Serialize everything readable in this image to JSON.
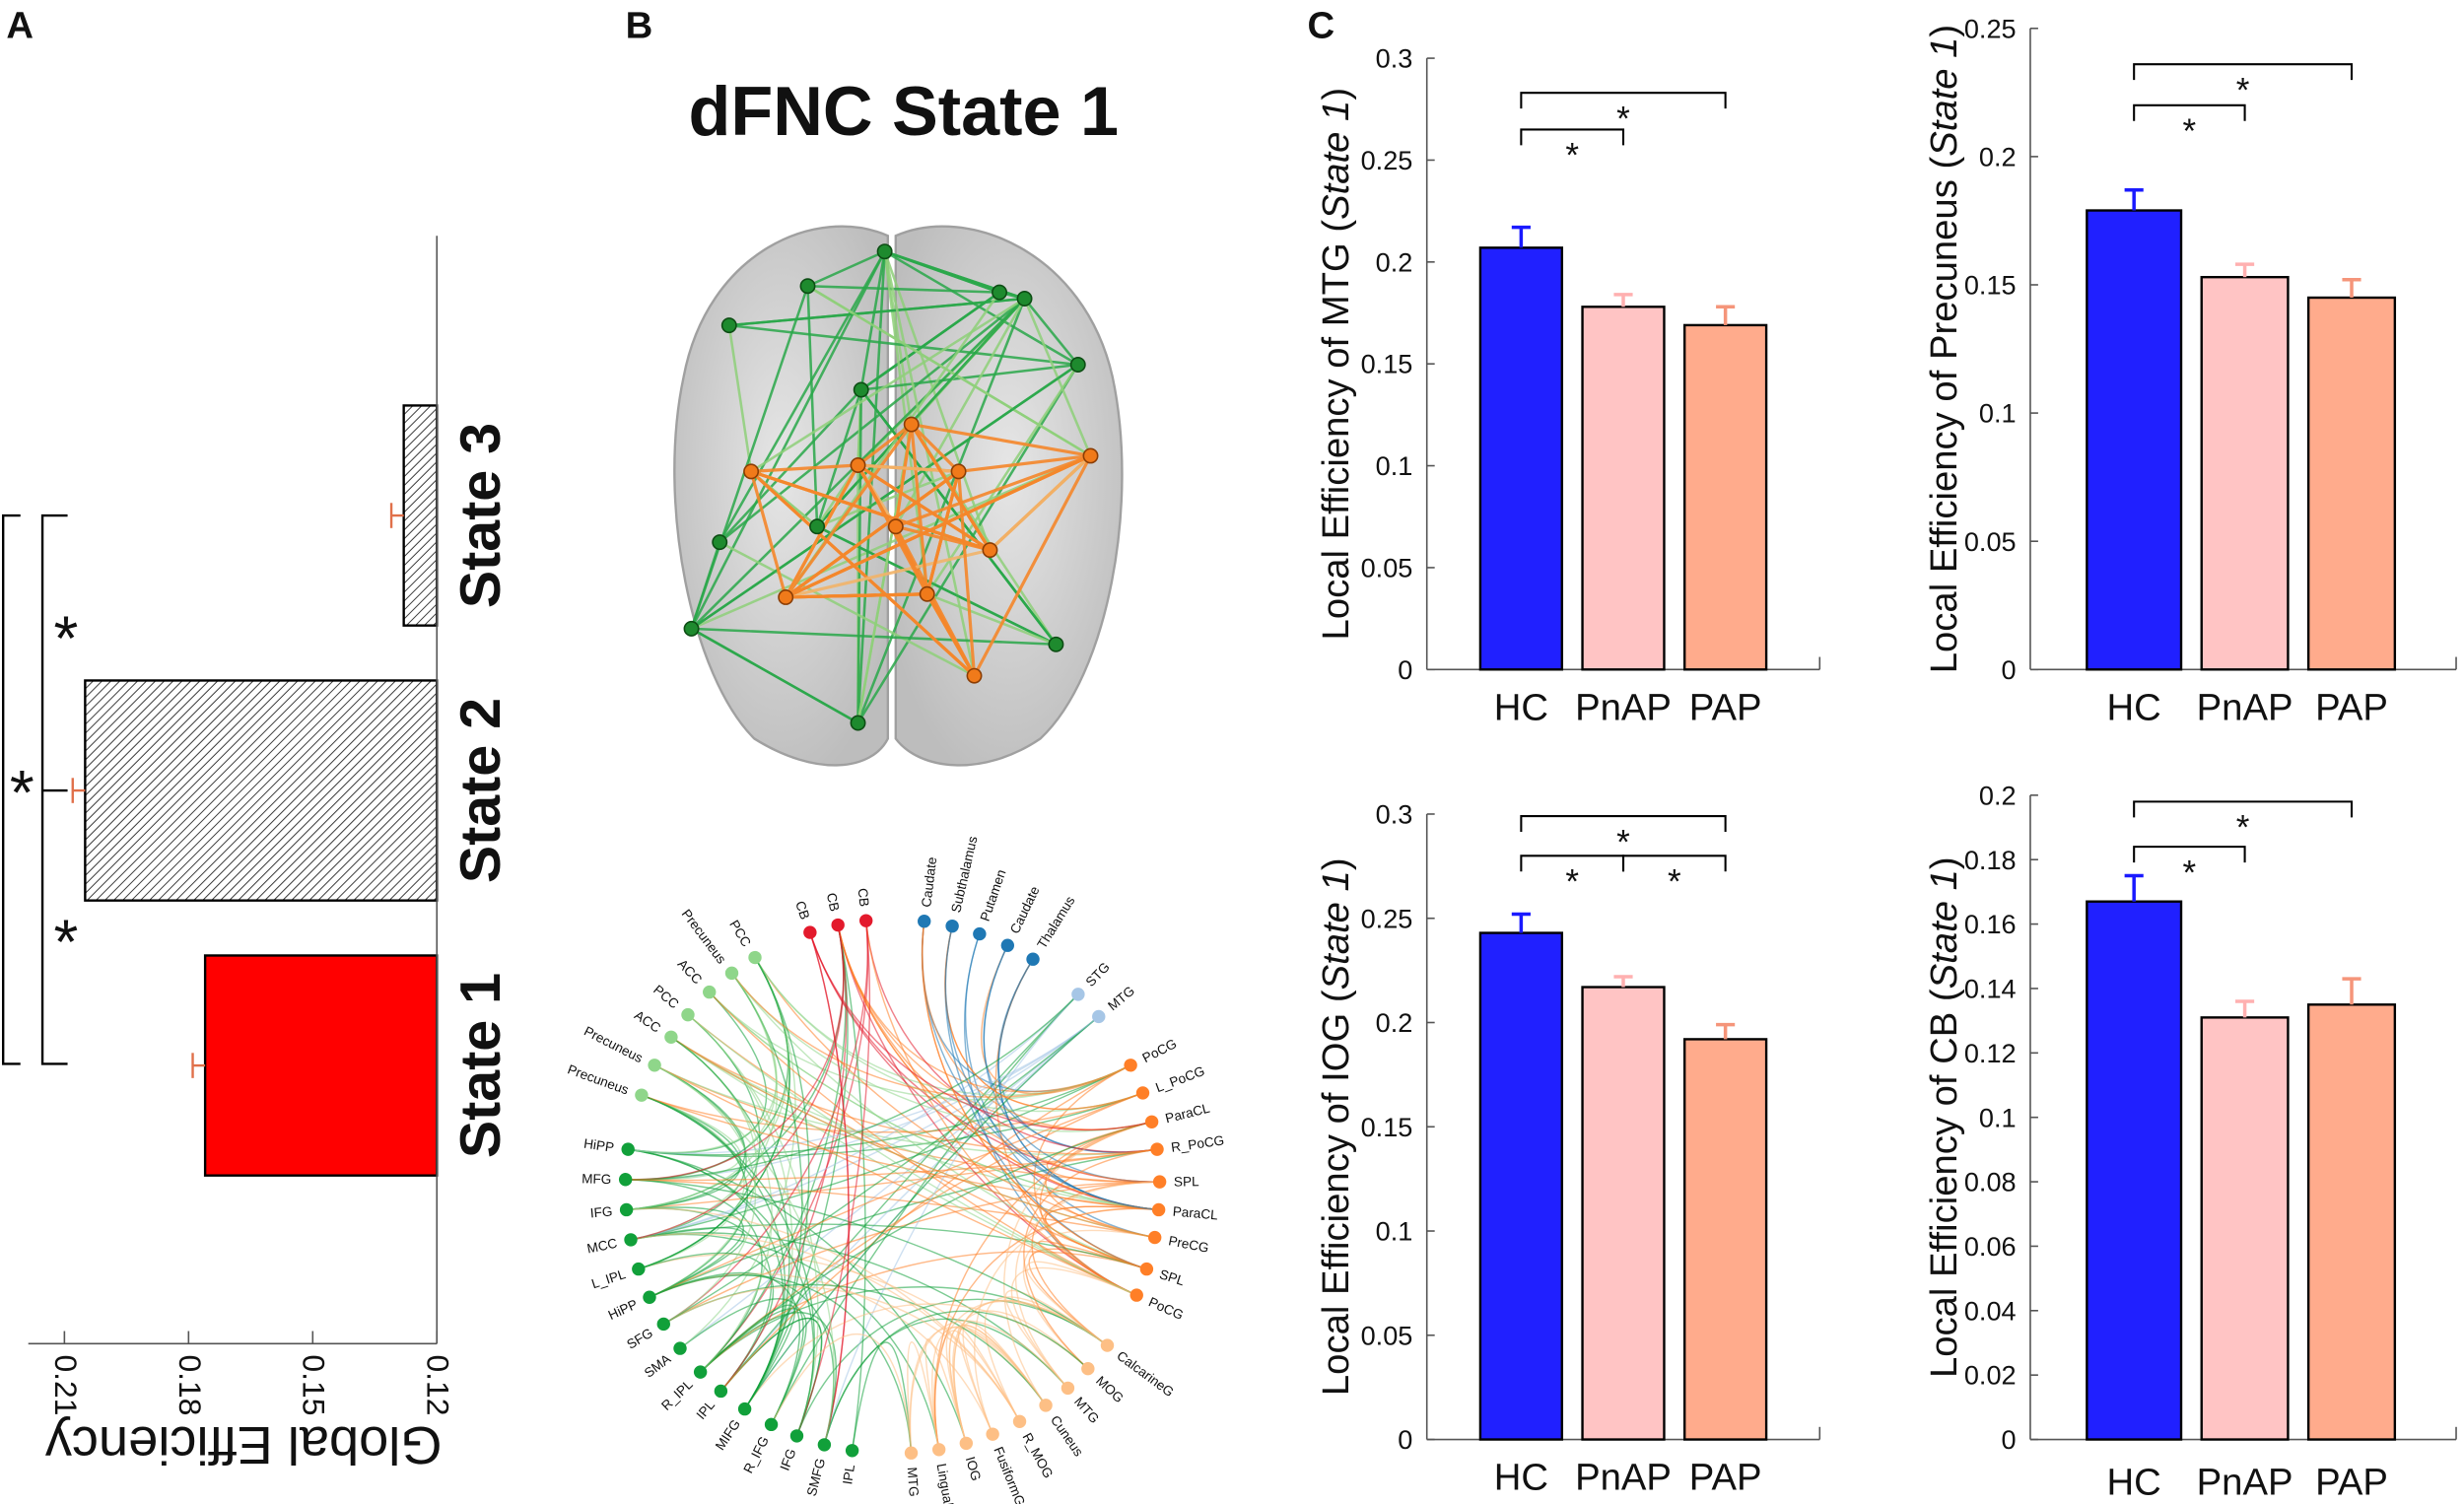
{
  "panels": {
    "a": "A",
    "b": "B",
    "c": "C"
  },
  "brain": {
    "title": "dFNC State 1"
  },
  "chart_data": [
    {
      "type": "bar",
      "orientation": "horizontal",
      "panel": "A",
      "categories": [
        "State 1",
        "State 2",
        "State 3"
      ],
      "values": [
        0.176,
        0.205,
        0.128
      ],
      "errors": [
        0.003,
        0.003,
        0.003
      ],
      "fills": [
        "#ff0000",
        "hatch",
        "hatch"
      ],
      "xlabel": "Global Efficiency",
      "ticks": [
        0.21,
        0.18,
        0.15,
        0.12
      ],
      "tick_labels": [
        "0.21",
        "0.18",
        "0.15",
        "0.12"
      ],
      "xlim": [
        0.12,
        0.22
      ],
      "significance": [
        {
          "pair": [
            "State 1",
            "State 3"
          ],
          "label": "*"
        },
        {
          "pair": [
            "State 2",
            "State 3"
          ],
          "label": "*"
        },
        {
          "pair": [
            "State 1",
            "State 2"
          ],
          "label": "*"
        }
      ]
    },
    {
      "type": "bar",
      "panel": "C",
      "categories": [
        "HC",
        "PnAP",
        "PAP"
      ],
      "values": [
        0.207,
        0.178,
        0.169
      ],
      "errors": [
        0.01,
        0.006,
        0.009
      ],
      "ylabel": "Local Efficiency of MTG",
      "ylabel_state": "State 1",
      "ylim": [
        0,
        0.3
      ],
      "tick_labels": [
        "0",
        "0.05",
        "0.1",
        "0.15",
        "0.2",
        "0.25",
        "0.3"
      ],
      "ticks": [
        0,
        0.05,
        0.1,
        0.15,
        0.2,
        0.25,
        0.3
      ],
      "significance": [
        {
          "pair": [
            "HC",
            "PnAP"
          ],
          "level": 0.265,
          "label": "*"
        },
        {
          "pair": [
            "HC",
            "PAP"
          ],
          "level": 0.283,
          "label": "*"
        }
      ]
    },
    {
      "type": "bar",
      "panel": "C",
      "categories": [
        "HC",
        "PnAP",
        "PAP"
      ],
      "values": [
        0.179,
        0.153,
        0.145
      ],
      "errors": [
        0.008,
        0.005,
        0.007
      ],
      "ylabel": "Local Efficiency of Precuneus",
      "ylabel_state": "State 1",
      "ylim": [
        0,
        0.25
      ],
      "tick_labels": [
        "0",
        "0.05",
        "0.1",
        "0.15",
        "0.2",
        "0.25"
      ],
      "ticks": [
        0,
        0.05,
        0.1,
        0.15,
        0.2,
        0.25
      ],
      "significance": [
        {
          "pair": [
            "HC",
            "PnAP"
          ],
          "level": 0.22,
          "label": "*"
        },
        {
          "pair": [
            "HC",
            "PAP"
          ],
          "level": 0.236,
          "label": "*"
        }
      ]
    },
    {
      "type": "bar",
      "panel": "C",
      "categories": [
        "HC",
        "PnAP",
        "PAP"
      ],
      "values": [
        0.243,
        0.217,
        0.192
      ],
      "errors": [
        0.009,
        0.005,
        0.007
      ],
      "ylabel": "Local Efficiency of IOG",
      "ylabel_state": "State 1",
      "ylim": [
        0,
        0.3
      ],
      "tick_labels": [
        "0",
        "0.05",
        "0.1",
        "0.15",
        "0.2",
        "0.25",
        "0.3"
      ],
      "ticks": [
        0,
        0.05,
        0.1,
        0.15,
        0.2,
        0.25,
        0.3
      ],
      "significance": [
        {
          "pair": [
            "HC",
            "PnAP"
          ],
          "level": 0.28,
          "label": "*"
        },
        {
          "pair": [
            "PnAP",
            "PAP"
          ],
          "level": 0.28,
          "label": "*"
        },
        {
          "pair": [
            "HC",
            "PAP"
          ],
          "level": 0.299,
          "label": "*"
        }
      ]
    },
    {
      "type": "bar",
      "panel": "C",
      "categories": [
        "HC",
        "PnAP",
        "PAP"
      ],
      "values": [
        0.167,
        0.131,
        0.135
      ],
      "errors": [
        0.008,
        0.005,
        0.008
      ],
      "ylabel": "Local Efficiency of CB",
      "ylabel_state": "State 1",
      "ylim": [
        0,
        0.2
      ],
      "tick_labels": [
        "0",
        "0.02",
        "0.04",
        "0.06",
        "0.08",
        "0.1",
        "0.12",
        "0.14",
        "0.16",
        "0.18",
        "0.2"
      ],
      "ticks": [
        0,
        0.02,
        0.04,
        0.06,
        0.08,
        0.1,
        0.12,
        0.14,
        0.16,
        0.18,
        0.2
      ],
      "significance": [
        {
          "pair": [
            "HC",
            "PnAP"
          ],
          "level": 0.184,
          "label": "*"
        },
        {
          "pair": [
            "HC",
            "PAP"
          ],
          "level": 0.198,
          "label": "*"
        }
      ]
    }
  ],
  "group_colors": {
    "HC": "#2020ff",
    "PnAP": "#ffc4c4",
    "PAP": "#ffab8c"
  },
  "chord": {
    "groups": [
      {
        "color": "#e31a2c",
        "nodes": [
          "CB",
          "CB",
          "CB"
        ]
      },
      {
        "color": "#1f78b4",
        "nodes": [
          "Caudate",
          "Subthalamus",
          "Putamen",
          "Caudate",
          "Thalamus"
        ]
      },
      {
        "color": "#a6c6e6",
        "nodes": [
          "STG",
          "MTG"
        ]
      },
      {
        "color": "#ff7f27",
        "nodes": [
          "PoCG",
          "L_PoCG",
          "ParaCL",
          "R_PoCG",
          "SPL",
          "ParaCL",
          "PreCG",
          "SPL",
          "PoCG"
        ]
      },
      {
        "color": "#fdbf85",
        "nodes": [
          "CalcarineG",
          "MOG",
          "MTG",
          "Cuneus",
          "R_MOG",
          "FusiformG",
          "IOG",
          "LingualG",
          "MTG"
        ]
      },
      {
        "color": "#11a03a",
        "nodes": [
          "IPL",
          "SMFG",
          "IFG",
          "R_IFG",
          "MIFG",
          "IPL",
          "R_IPL",
          "SMA",
          "SFG",
          "HiPP",
          "L_IPL",
          "MCC",
          "IFG",
          "MFG",
          "HiPP"
        ]
      },
      {
        "color": "#8fd68a",
        "nodes": [
          "Precuneus",
          "Precuneus",
          "ACC",
          "PCC",
          "ACC",
          "Precuneus",
          "PCC"
        ]
      }
    ]
  }
}
